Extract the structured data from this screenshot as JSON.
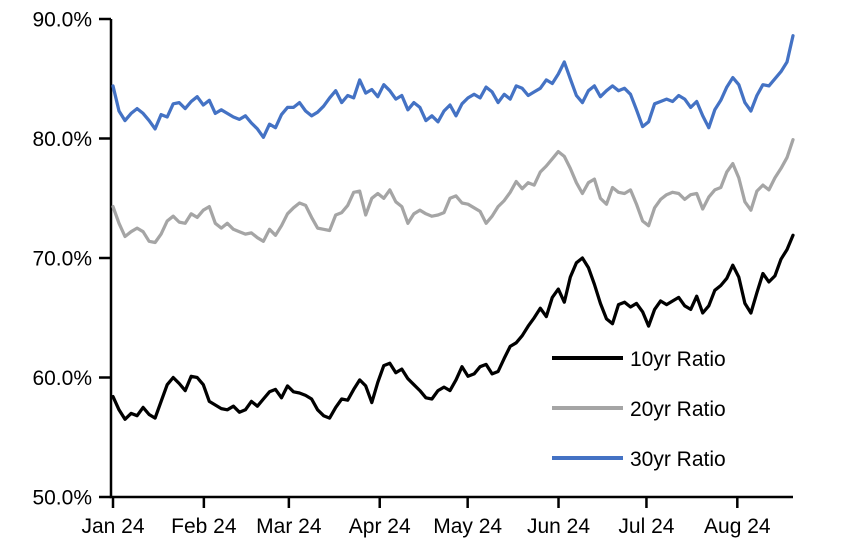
{
  "chart_data": {
    "type": "line",
    "title": "",
    "unit": "%",
    "grid": "off",
    "y_axis": {
      "min": 50,
      "max": 90,
      "ticks": [
        {
          "value": 90,
          "label": "90.0%"
        },
        {
          "value": 80,
          "label": "80.0%"
        },
        {
          "value": 70,
          "label": "70.0%"
        },
        {
          "value": 60,
          "label": "60.0%"
        },
        {
          "value": 50,
          "label": "50.0%"
        }
      ]
    },
    "x_axis": {
      "tick_labels": [
        "Jan 24",
        "Feb 24",
        "Mar 24",
        "Apr 24",
        "May 24",
        "Jun 24",
        "Jul 24",
        "Aug 24"
      ],
      "tick_day_offsets": [
        0,
        31,
        60,
        91,
        121,
        152,
        182,
        213
      ],
      "span_days": 232
    },
    "legend": {
      "position": "inside-bottom-right",
      "entries": [
        "10yr Ratio",
        "20yr Ratio",
        "30yr Ratio"
      ]
    },
    "series": [
      {
        "name": "10yr Ratio",
        "color": "#000000",
        "values": [
          58.4,
          57.3,
          56.5,
          57.0,
          56.8,
          57.5,
          56.9,
          56.6,
          58.0,
          59.4,
          60.0,
          59.5,
          58.9,
          60.1,
          60.0,
          59.4,
          58.0,
          57.7,
          57.4,
          57.3,
          57.6,
          57.1,
          57.3,
          58.0,
          57.6,
          58.2,
          58.8,
          59.0,
          58.3,
          59.3,
          58.8,
          58.7,
          58.5,
          58.2,
          57.3,
          56.8,
          56.6,
          57.5,
          58.2,
          58.1,
          59.0,
          59.8,
          59.3,
          57.9,
          59.6,
          61.0,
          61.2,
          60.4,
          60.7,
          59.9,
          59.4,
          58.9,
          58.3,
          58.2,
          58.9,
          59.2,
          58.9,
          59.8,
          60.9,
          60.1,
          60.3,
          60.9,
          61.1,
          60.3,
          60.5,
          61.6,
          62.6,
          62.9,
          63.5,
          64.3,
          65.0,
          65.8,
          65.1,
          66.7,
          67.4,
          66.3,
          68.4,
          69.6,
          70.0,
          69.2,
          67.8,
          66.2,
          64.9,
          64.5,
          66.1,
          66.3,
          65.9,
          66.2,
          65.5,
          64.3,
          65.7,
          66.4,
          66.1,
          66.4,
          66.7,
          66.0,
          65.7,
          66.8,
          65.4,
          66.0,
          67.3,
          67.7,
          68.3,
          69.4,
          68.4,
          66.2,
          65.4,
          67.1,
          68.7,
          68.0,
          68.5,
          69.9,
          70.7,
          71.9
        ]
      },
      {
        "name": "20yr Ratio",
        "color": "#A5A5A5",
        "values": [
          74.3,
          72.9,
          71.8,
          72.2,
          72.5,
          72.2,
          71.4,
          71.3,
          72.0,
          73.1,
          73.5,
          73.0,
          72.9,
          73.7,
          73.4,
          74.0,
          74.3,
          72.9,
          72.5,
          72.9,
          72.4,
          72.2,
          72.0,
          72.1,
          71.7,
          71.4,
          72.4,
          71.9,
          72.7,
          73.7,
          74.2,
          74.6,
          74.4,
          73.4,
          72.5,
          72.4,
          72.3,
          73.6,
          73.8,
          74.4,
          75.5,
          75.6,
          73.6,
          75.0,
          75.4,
          75.0,
          75.7,
          74.7,
          74.3,
          72.9,
          73.7,
          74.0,
          73.7,
          73.5,
          73.6,
          73.8,
          75.0,
          75.2,
          74.6,
          74.5,
          74.2,
          73.9,
          72.9,
          73.5,
          74.3,
          74.8,
          75.5,
          76.4,
          75.8,
          76.3,
          76.1,
          77.2,
          77.7,
          78.3,
          78.9,
          78.5,
          77.5,
          76.3,
          75.4,
          76.3,
          76.6,
          75.0,
          74.5,
          75.9,
          75.5,
          75.4,
          75.7,
          74.5,
          73.1,
          72.7,
          74.2,
          74.9,
          75.3,
          75.5,
          75.4,
          74.9,
          75.3,
          75.4,
          74.1,
          75.1,
          75.7,
          75.9,
          77.2,
          77.9,
          76.7,
          74.7,
          74.0,
          75.6,
          76.1,
          75.7,
          76.7,
          77.5,
          78.4,
          79.9
        ]
      },
      {
        "name": "30yr Ratio",
        "color": "#4472C4",
        "values": [
          84.4,
          82.3,
          81.5,
          82.1,
          82.5,
          82.1,
          81.5,
          80.8,
          82.0,
          81.8,
          82.9,
          83.0,
          82.5,
          83.1,
          83.5,
          82.8,
          83.2,
          82.1,
          82.4,
          82.1,
          81.8,
          81.6,
          81.9,
          81.3,
          80.8,
          80.1,
          81.2,
          80.9,
          82.0,
          82.6,
          82.6,
          83.0,
          82.3,
          81.9,
          82.2,
          82.7,
          83.4,
          84.0,
          83.0,
          83.6,
          83.4,
          84.9,
          83.8,
          84.1,
          83.5,
          84.5,
          84.0,
          83.3,
          83.6,
          82.4,
          83.0,
          82.6,
          81.5,
          81.9,
          81.4,
          82.3,
          82.8,
          81.9,
          82.9,
          83.4,
          83.7,
          83.4,
          84.3,
          83.9,
          83.0,
          83.7,
          83.3,
          84.4,
          84.2,
          83.6,
          83.9,
          84.2,
          84.9,
          84.6,
          85.4,
          86.4,
          85.0,
          83.6,
          83.0,
          84.0,
          84.4,
          83.5,
          84.0,
          84.4,
          84.0,
          84.2,
          83.7,
          82.4,
          81.0,
          81.4,
          82.9,
          83.1,
          83.3,
          83.1,
          83.6,
          83.3,
          82.6,
          83.1,
          81.9,
          80.9,
          82.4,
          83.2,
          84.3,
          85.1,
          84.5,
          83.0,
          82.3,
          83.6,
          84.5,
          84.4,
          85.0,
          85.6,
          86.4,
          88.6
        ]
      }
    ]
  },
  "colors": {
    "axis": "#000000",
    "background": "#FFFFFF"
  }
}
